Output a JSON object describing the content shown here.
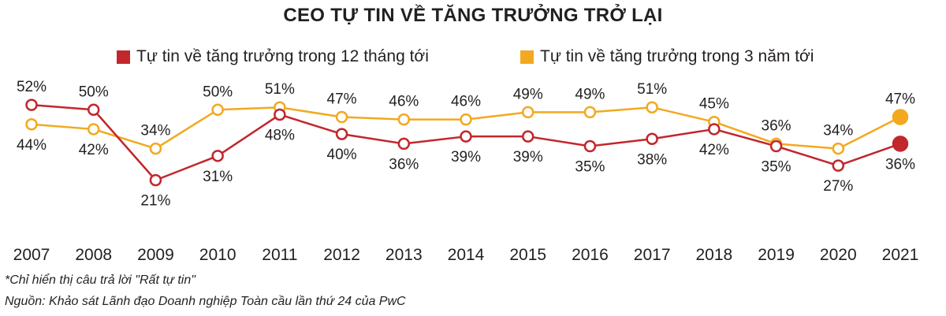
{
  "title": "CEO TỰ TIN VỀ TĂNG TRƯỞNG TRỞ LẠI",
  "footnote": "*Chỉ hiển thị câu trả lời \"Rất tự tin\"",
  "source": "Nguồn: Khảo sát Lãnh đạo Doanh nghiệp Toàn cầu lần thứ 24 của PwC",
  "colors": {
    "red": "#c1272d",
    "gold": "#f2a91f"
  },
  "chart_data": {
    "type": "line",
    "title": "CEO TỰ TIN VỀ TĂNG TRƯỞNG TRỞ LẠI",
    "x": [
      "2007",
      "2008",
      "2009",
      "2010",
      "2011",
      "2012",
      "2013",
      "2014",
      "2015",
      "2016",
      "2017",
      "2018",
      "2019",
      "2020",
      "2021"
    ],
    "unit": "%",
    "ylim": [
      15,
      60
    ],
    "grid": false,
    "legend_position": "top",
    "series": [
      {
        "name": "Tự tin về tăng trưởng trong 12 tháng tới",
        "color": "#c1272d",
        "values": [
          52,
          50,
          21,
          31,
          48,
          40,
          36,
          39,
          39,
          35,
          38,
          42,
          35,
          27,
          36
        ],
        "label_position": [
          "above",
          "above",
          "below",
          "below",
          "below",
          "below",
          "below",
          "below",
          "below",
          "below",
          "below",
          "below",
          "below",
          "below",
          "below"
        ]
      },
      {
        "name": "Tự tin về tăng trưởng trong 3 năm tới",
        "color": "#f2a91f",
        "values": [
          44,
          42,
          34,
          50,
          51,
          47,
          46,
          46,
          49,
          49,
          51,
          45,
          36,
          34,
          47
        ],
        "label_position": [
          "below",
          "below",
          "above",
          "above",
          "above",
          "above",
          "above",
          "above",
          "above",
          "above",
          "above",
          "above",
          "above",
          "above",
          "above"
        ]
      }
    ]
  }
}
